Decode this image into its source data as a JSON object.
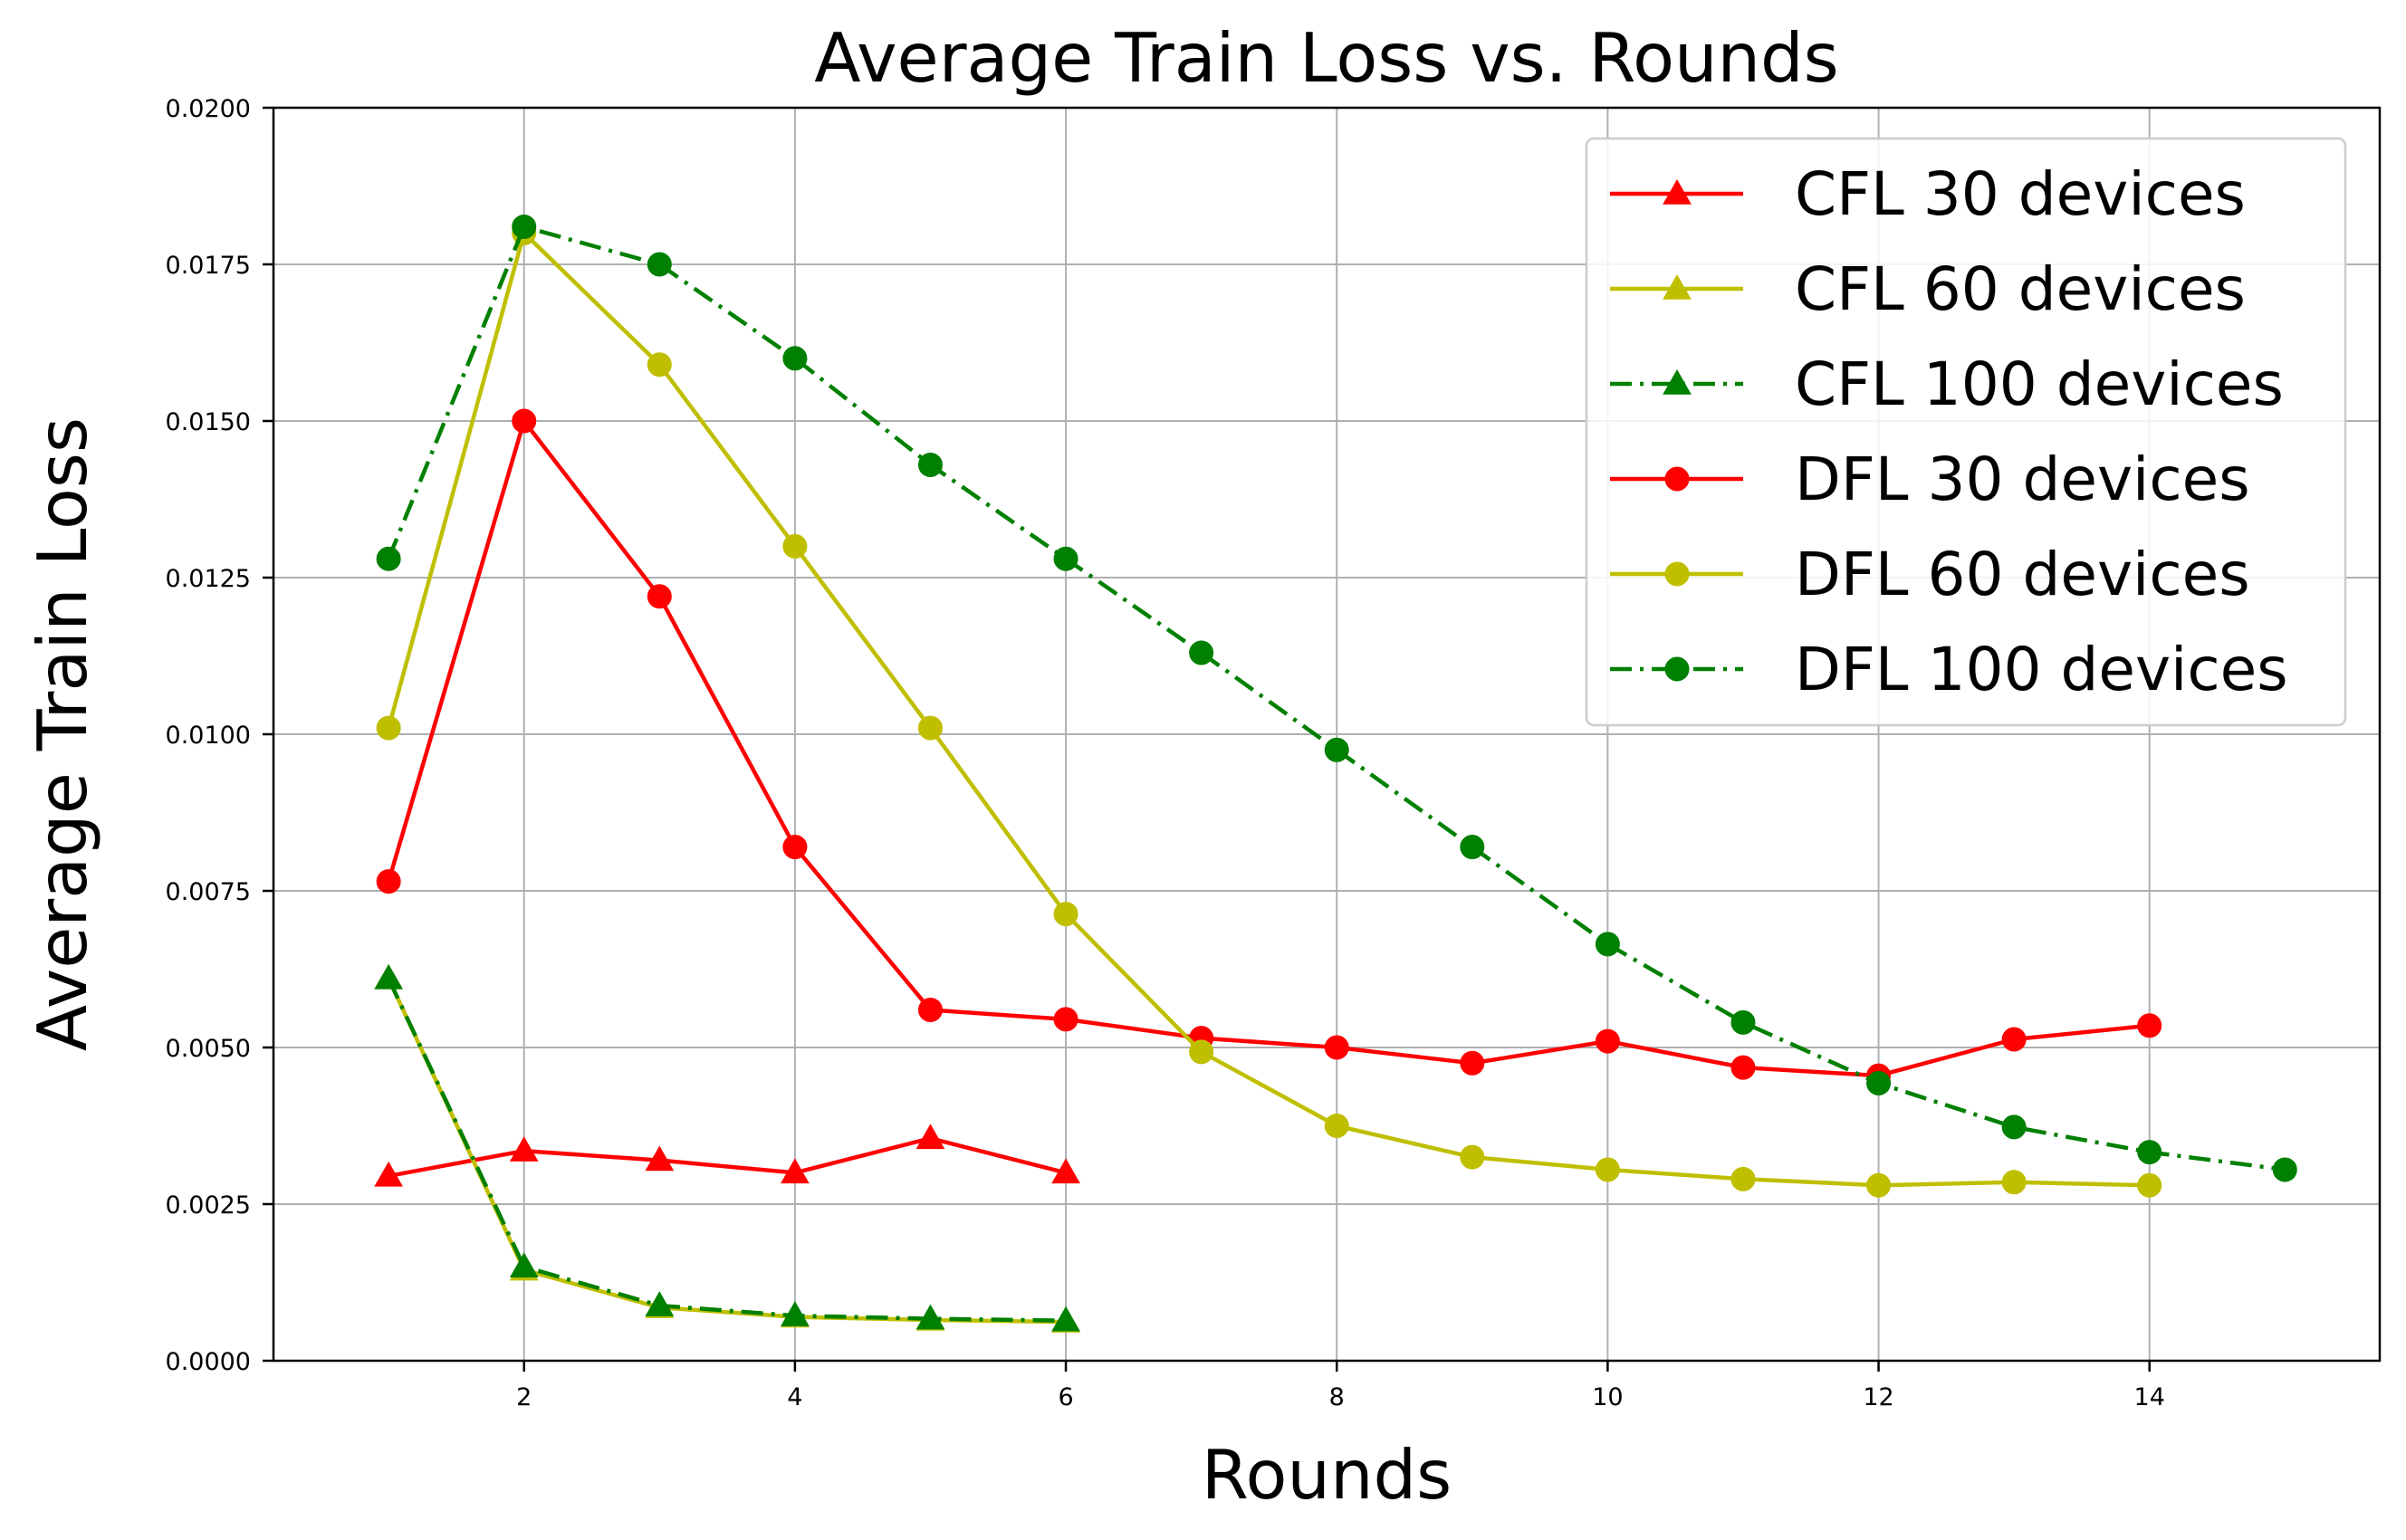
{
  "chart_data": {
    "type": "line",
    "title": "Average Train Loss vs. Rounds",
    "xlabel": "Rounds",
    "ylabel": "Average Train Loss",
    "xlim": [
      0.15,
      15.7
    ],
    "ylim": [
      0,
      0.02
    ],
    "xticks": [
      2,
      4,
      6,
      8,
      10,
      12,
      14
    ],
    "xtick_labels": [
      "2",
      "4",
      "6",
      "8",
      "10",
      "12",
      "14"
    ],
    "yticks": [
      0,
      0.0025,
      0.005,
      0.0075,
      0.01,
      0.0125,
      0.015,
      0.0175,
      0.02
    ],
    "ytick_labels": [
      "0.0000",
      "0.0025",
      "0.0050",
      "0.0075",
      "0.0100",
      "0.0125",
      "0.0150",
      "0.0175",
      "0.0200"
    ],
    "grid": true,
    "legend_position": "top-right",
    "series": [
      {
        "name": "CFL 30 devices",
        "color": "#ff0000",
        "marker": "triangle",
        "linestyle": "solid",
        "x": [
          1,
          2,
          3,
          4,
          5,
          6
        ],
        "values": [
          0.00295,
          0.00335,
          0.0032,
          0.003,
          0.00355,
          0.003
        ]
      },
      {
        "name": "CFL 60 devices",
        "color": "#bfbf00",
        "marker": "triangle",
        "linestyle": "solid",
        "x": [
          1,
          2,
          3,
          4,
          5,
          6
        ],
        "values": [
          0.0061,
          0.00145,
          0.00085,
          0.0007,
          0.00065,
          0.00062
        ]
      },
      {
        "name": "CFL 100 devices",
        "color": "#008000",
        "marker": "triangle",
        "linestyle": "dashdot",
        "x": [
          1,
          2,
          3,
          4,
          5,
          6
        ],
        "values": [
          0.0061,
          0.0015,
          0.00088,
          0.00072,
          0.00067,
          0.00064
        ]
      },
      {
        "name": "DFL 30 devices",
        "color": "#ff0000",
        "marker": "circle",
        "linestyle": "solid",
        "x": [
          1,
          2,
          3,
          4,
          5,
          6,
          7,
          8,
          9,
          10,
          11,
          12,
          13,
          14
        ],
        "values": [
          0.00765,
          0.015,
          0.0122,
          0.0082,
          0.0056,
          0.00545,
          0.00515,
          0.005,
          0.00475,
          0.0051,
          0.00468,
          0.00455,
          0.00513,
          0.00535
        ]
      },
      {
        "name": "DFL 60 devices",
        "color": "#bfbf00",
        "marker": "circle",
        "linestyle": "solid",
        "x": [
          1,
          2,
          3,
          4,
          5,
          6,
          7,
          8,
          9,
          10,
          11,
          12,
          13,
          14
        ],
        "values": [
          0.0101,
          0.018,
          0.0159,
          0.013,
          0.0101,
          0.00713,
          0.00493,
          0.00375,
          0.00325,
          0.00305,
          0.0029,
          0.0028,
          0.00285,
          0.0028
        ]
      },
      {
        "name": "DFL 100 devices",
        "color": "#008000",
        "marker": "circle",
        "linestyle": "dashdot",
        "x": [
          1,
          2,
          3,
          4,
          5,
          6,
          7,
          8,
          9,
          10,
          11,
          12,
          13,
          14,
          15
        ],
        "values": [
          0.0128,
          0.0181,
          0.0175,
          0.016,
          0.0143,
          0.0128,
          0.0113,
          0.00975,
          0.0082,
          0.00665,
          0.0054,
          0.00443,
          0.00373,
          0.00333,
          0.00305
        ]
      }
    ]
  }
}
